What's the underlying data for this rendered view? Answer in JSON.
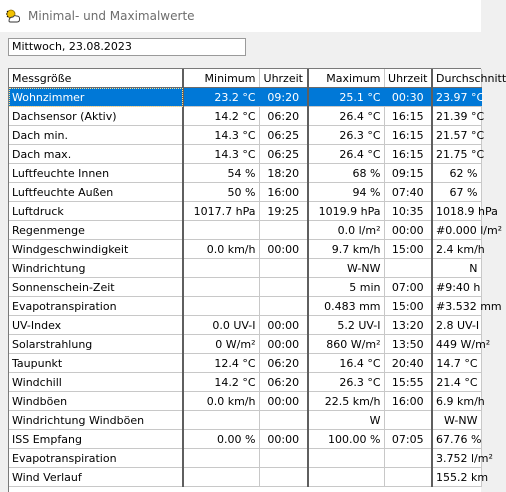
{
  "window": {
    "title": "Minimal- und Maximalwerte"
  },
  "date_field": {
    "value": "Mittwoch, 23.08.2023"
  },
  "table": {
    "headers": [
      "Messgröße",
      "Minimum",
      "Uhrzeit",
      "Maximum",
      "Uhrzeit",
      "Durchschnitt"
    ],
    "selected_row": 0,
    "rows": [
      [
        "Wohnzimmer",
        "23.2 °C",
        "09:20",
        "25.1 °C",
        "00:30",
        "23.97 °C"
      ],
      [
        "Dachsensor (Aktiv)",
        "14.2 °C",
        "06:20",
        "26.4 °C",
        "16:15",
        "21.39 °C"
      ],
      [
        "Dach min.",
        "14.3 °C",
        "06:25",
        "26.3 °C",
        "16:15",
        "21.57 °C"
      ],
      [
        "Dach max.",
        "14.3 °C",
        "06:25",
        "26.4 °C",
        "16:15",
        "21.75 °C"
      ],
      [
        "Luftfeuchte Innen",
        "54 %",
        "18:20",
        "68 %",
        "09:15",
        "62 %"
      ],
      [
        "Luftfeuchte Außen",
        "50 %",
        "16:00",
        "94 %",
        "07:40",
        "67 %"
      ],
      [
        "Luftdruck",
        "1017.7 hPa",
        "19:25",
        "1019.9 hPa",
        "10:35",
        "1018.9 hPa"
      ],
      [
        "Regenmenge",
        "",
        "",
        "0.0 l/m²",
        "00:00",
        "#0.000 l/m²"
      ],
      [
        "Windgeschwindigkeit",
        "0.0 km/h",
        "00:00",
        "9.7 km/h",
        "15:00",
        "2.4 km/h"
      ],
      [
        "Windrichtung",
        "",
        "",
        "W-NW",
        "",
        "N"
      ],
      [
        "Sonnenschein-Zeit",
        "",
        "",
        "5 min",
        "07:00",
        "#9:40 h"
      ],
      [
        "Evapotranspiration",
        "",
        "",
        "0.483 mm",
        "15:00",
        "#3.532 mm"
      ],
      [
        "UV-Index",
        "0.0 UV-I",
        "00:00",
        "5.2 UV-I",
        "13:20",
        "2.8 UV-I"
      ],
      [
        "Solarstrahlung",
        "0 W/m²",
        "00:00",
        "860 W/m²",
        "13:50",
        "449 W/m²"
      ],
      [
        "Taupunkt",
        "12.4 °C",
        "06:20",
        "16.4 °C",
        "20:40",
        "14.7 °C"
      ],
      [
        "Windchill",
        "14.2 °C",
        "06:20",
        "26.3 °C",
        "15:55",
        "21.4 °C"
      ],
      [
        "Windböen",
        "0.0 km/h",
        "00:00",
        "22.5 km/h",
        "16:00",
        "6.9 km/h"
      ],
      [
        "Windrichtung Windböen",
        "",
        "",
        "W",
        "",
        "W-NW"
      ],
      [
        "ISS Empfang",
        "0.00 %",
        "00:00",
        "100.00 %",
        "07:05",
        "67.76 %"
      ],
      [
        "Evapotranspiration",
        "",
        "",
        "",
        "",
        "3.752 l/m²"
      ],
      [
        "Wind Verlauf",
        "",
        "",
        "",
        "",
        "155.2 km"
      ]
    ]
  }
}
